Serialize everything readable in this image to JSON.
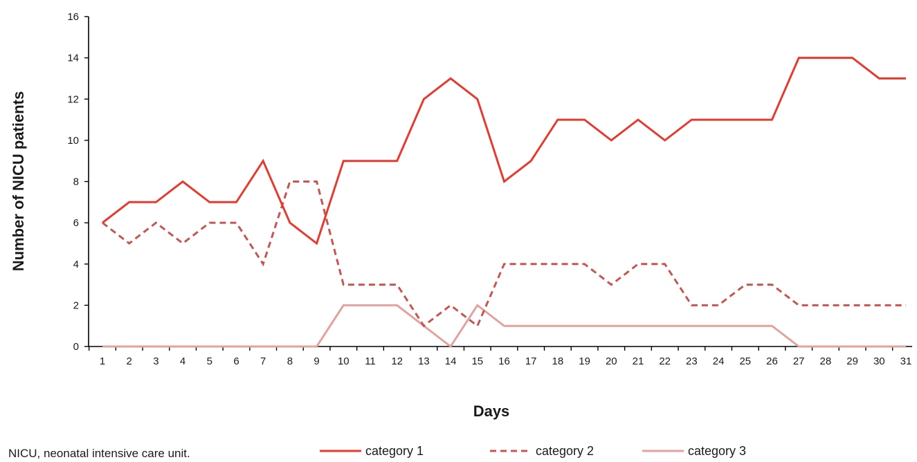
{
  "chart_data": {
    "type": "line",
    "title": "",
    "xlabel": "Days",
    "ylabel": "Number of NICU patients",
    "xlim": [
      1,
      31
    ],
    "ylim": [
      0,
      16
    ],
    "x_ticks": [
      1,
      2,
      3,
      4,
      5,
      6,
      7,
      8,
      9,
      10,
      11,
      12,
      13,
      14,
      15,
      16,
      17,
      18,
      19,
      20,
      21,
      22,
      23,
      24,
      25,
      26,
      27,
      28,
      29,
      30,
      31
    ],
    "y_ticks": [
      0,
      2,
      4,
      6,
      8,
      10,
      12,
      14,
      16
    ],
    "grid": false,
    "legend_position": "bottom",
    "footnote": "NICU, neonatal intensive care unit.",
    "series": [
      {
        "name": "category 1",
        "color": "#e8392e",
        "style": "solid",
        "values": [
          6,
          7,
          7,
          8,
          7,
          7,
          9,
          6,
          5,
          9,
          9,
          9,
          12,
          13,
          12,
          8,
          9,
          11,
          11,
          10,
          11,
          10,
          11,
          11,
          11,
          11,
          14,
          14,
          14,
          13,
          13
        ]
      },
      {
        "name": "category 2",
        "color": "#c9544f",
        "style": "dashed",
        "values": [
          6,
          5,
          6,
          5,
          6,
          6,
          4,
          8,
          8,
          3,
          3,
          3,
          1,
          2,
          1,
          4,
          4,
          4,
          4,
          3,
          4,
          4,
          2,
          2,
          3,
          3,
          2,
          2,
          2,
          2,
          2
        ]
      },
      {
        "name": "category 3",
        "color": "#e3a29d",
        "style": "solid",
        "values": [
          0,
          0,
          0,
          0,
          0,
          0,
          0,
          0,
          0,
          2,
          2,
          2,
          1,
          0,
          2,
          1,
          1,
          1,
          1,
          1,
          1,
          1,
          1,
          1,
          1,
          1,
          0,
          0,
          0,
          0,
          0
        ]
      }
    ]
  }
}
